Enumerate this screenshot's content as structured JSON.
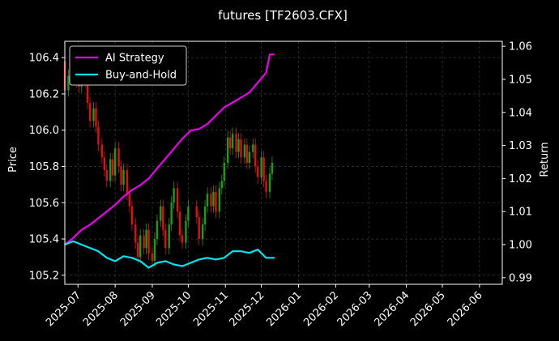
{
  "chart_data": {
    "type": "line",
    "title": "futures [TF2603.CFX]",
    "ylabel_left": "Price",
    "ylabel_right": "Return",
    "xlim": [
      "2025-06-20",
      "2026-06-20"
    ],
    "ylim_left": [
      105.15,
      106.49
    ],
    "ylim_right": [
      0.988,
      1.0615
    ],
    "x_ticks": [
      "2025-07",
      "2025-08",
      "2025-09",
      "2025-10",
      "2025-11",
      "2025-12",
      "2026-01",
      "2026-02",
      "2026-03",
      "2026-04",
      "2026-05",
      "2026-06"
    ],
    "y_ticks_left": [
      "105.2",
      "105.4",
      "105.6",
      "105.8",
      "106.0",
      "106.2",
      "106.4"
    ],
    "y_ticks_right": [
      "0.99",
      "1.00",
      "1.01",
      "1.02",
      "1.03",
      "1.04",
      "1.05",
      "1.06"
    ],
    "grid": true,
    "legend_position": "top-left",
    "colors": {
      "background": "#000000",
      "grid": "#444444",
      "up_candle": "#1a9e1a",
      "down_candle": "#e01010",
      "ai_strategy": "#ee00ee",
      "buy_and_hold": "#00e5ee"
    },
    "series": [
      {
        "name": "AI Strategy",
        "axis": "right",
        "x": [
          "2025-06-20",
          "2025-06-27",
          "2025-07-04",
          "2025-07-11",
          "2025-07-18",
          "2025-07-25",
          "2025-08-01",
          "2025-08-08",
          "2025-08-15",
          "2025-08-22",
          "2025-08-29",
          "2025-09-05",
          "2025-09-12",
          "2025-09-19",
          "2025-09-26",
          "2025-10-03",
          "2025-10-10",
          "2025-10-17",
          "2025-10-24",
          "2025-10-31",
          "2025-11-07",
          "2025-11-14",
          "2025-11-21",
          "2025-11-28",
          "2025-12-05",
          "2025-12-08",
          "2025-12-12"
        ],
        "y": [
          1.0,
          1.002,
          1.0045,
          1.006,
          1.008,
          1.01,
          1.012,
          1.0145,
          1.0165,
          1.018,
          1.02,
          1.023,
          1.026,
          1.029,
          1.032,
          1.0345,
          1.035,
          1.0365,
          1.039,
          1.0415,
          1.043,
          1.0445,
          1.046,
          1.049,
          1.052,
          1.0575,
          1.0575
        ]
      },
      {
        "name": "Buy-and-Hold",
        "axis": "right",
        "x": [
          "2025-06-20",
          "2025-06-27",
          "2025-07-04",
          "2025-07-11",
          "2025-07-18",
          "2025-07-25",
          "2025-08-01",
          "2025-08-08",
          "2025-08-15",
          "2025-08-22",
          "2025-08-29",
          "2025-09-05",
          "2025-09-12",
          "2025-09-19",
          "2025-09-26",
          "2025-10-03",
          "2025-10-10",
          "2025-10-17",
          "2025-10-24",
          "2025-10-31",
          "2025-11-07",
          "2025-11-14",
          "2025-11-21",
          "2025-11-28",
          "2025-12-05",
          "2025-12-12"
        ],
        "y": [
          1.0,
          1.001,
          1.0,
          0.999,
          0.998,
          0.996,
          0.995,
          0.9965,
          0.996,
          0.995,
          0.993,
          0.9945,
          0.995,
          0.994,
          0.9935,
          0.9945,
          0.9955,
          0.996,
          0.9955,
          0.996,
          0.998,
          0.998,
          0.9975,
          0.9985,
          0.996,
          0.996
        ]
      }
    ],
    "candles": [
      {
        "x": "2025-06-20",
        "o": 106.38,
        "c": 106.22
      },
      {
        "x": "2025-06-23",
        "o": 106.22,
        "c": 106.3
      },
      {
        "x": "2025-06-25",
        "o": 106.3,
        "c": 106.36
      },
      {
        "x": "2025-06-27",
        "o": 106.36,
        "c": 106.3
      },
      {
        "x": "2025-06-30",
        "o": 106.3,
        "c": 106.27
      },
      {
        "x": "2025-07-02",
        "o": 106.27,
        "c": 106.24
      },
      {
        "x": "2025-07-04",
        "o": 106.24,
        "c": 106.3
      },
      {
        "x": "2025-07-07",
        "o": 106.3,
        "c": 106.27
      },
      {
        "x": "2025-07-09",
        "o": 106.27,
        "c": 106.15
      },
      {
        "x": "2025-07-11",
        "o": 106.15,
        "c": 106.05
      },
      {
        "x": "2025-07-14",
        "o": 106.05,
        "c": 106.12
      },
      {
        "x": "2025-07-16",
        "o": 106.12,
        "c": 106.02
      },
      {
        "x": "2025-07-18",
        "o": 106.02,
        "c": 105.92
      },
      {
        "x": "2025-07-21",
        "o": 105.92,
        "c": 105.85
      },
      {
        "x": "2025-07-23",
        "o": 105.85,
        "c": 105.78
      },
      {
        "x": "2025-07-25",
        "o": 105.78,
        "c": 105.72
      },
      {
        "x": "2025-07-28",
        "o": 105.72,
        "c": 105.84
      },
      {
        "x": "2025-07-30",
        "o": 105.84,
        "c": 105.75
      },
      {
        "x": "2025-08-01",
        "o": 105.75,
        "c": 105.9
      },
      {
        "x": "2025-08-04",
        "o": 105.9,
        "c": 105.8
      },
      {
        "x": "2025-08-06",
        "o": 105.8,
        "c": 105.7
      },
      {
        "x": "2025-08-08",
        "o": 105.7,
        "c": 105.78
      },
      {
        "x": "2025-08-11",
        "o": 105.78,
        "c": 105.65
      },
      {
        "x": "2025-08-13",
        "o": 105.65,
        "c": 105.58
      },
      {
        "x": "2025-08-15",
        "o": 105.58,
        "c": 105.48
      },
      {
        "x": "2025-08-18",
        "o": 105.48,
        "c": 105.38
      },
      {
        "x": "2025-08-20",
        "o": 105.38,
        "c": 105.3
      },
      {
        "x": "2025-08-22",
        "o": 105.3,
        "c": 105.42
      },
      {
        "x": "2025-08-25",
        "o": 105.42,
        "c": 105.35
      },
      {
        "x": "2025-08-27",
        "o": 105.35,
        "c": 105.45
      },
      {
        "x": "2025-08-29",
        "o": 105.45,
        "c": 105.32
      },
      {
        "x": "2025-09-01",
        "o": 105.32,
        "c": 105.28
      },
      {
        "x": "2025-09-03",
        "o": 105.28,
        "c": 105.4
      },
      {
        "x": "2025-09-05",
        "o": 105.4,
        "c": 105.5
      },
      {
        "x": "2025-09-08",
        "o": 105.5,
        "c": 105.58
      },
      {
        "x": "2025-09-10",
        "o": 105.58,
        "c": 105.45
      },
      {
        "x": "2025-09-12",
        "o": 105.45,
        "c": 105.35
      },
      {
        "x": "2025-09-15",
        "o": 105.35,
        "c": 105.48
      },
      {
        "x": "2025-09-17",
        "o": 105.48,
        "c": 105.6
      },
      {
        "x": "2025-09-19",
        "o": 105.6,
        "c": 105.68
      },
      {
        "x": "2025-09-22",
        "o": 105.68,
        "c": 105.55
      },
      {
        "x": "2025-09-24",
        "o": 105.55,
        "c": 105.42
      },
      {
        "x": "2025-09-26",
        "o": 105.42,
        "c": 105.38
      },
      {
        "x": "2025-09-29",
        "o": 105.38,
        "c": 105.5
      },
      {
        "x": "2025-10-01",
        "o": 105.5,
        "c": 105.58
      },
      {
        "x": "2025-10-08",
        "o": 105.58,
        "c": 105.52
      },
      {
        "x": "2025-10-10",
        "o": 105.52,
        "c": 105.4
      },
      {
        "x": "2025-10-13",
        "o": 105.4,
        "c": 105.48
      },
      {
        "x": "2025-10-15",
        "o": 105.48,
        "c": 105.58
      },
      {
        "x": "2025-10-17",
        "o": 105.58,
        "c": 105.65
      },
      {
        "x": "2025-10-20",
        "o": 105.65,
        "c": 105.58
      },
      {
        "x": "2025-10-22",
        "o": 105.58,
        "c": 105.66
      },
      {
        "x": "2025-10-24",
        "o": 105.66,
        "c": 105.55
      },
      {
        "x": "2025-10-27",
        "o": 105.55,
        "c": 105.68
      },
      {
        "x": "2025-10-29",
        "o": 105.68,
        "c": 105.72
      },
      {
        "x": "2025-10-31",
        "o": 105.72,
        "c": 105.82
      },
      {
        "x": "2025-11-03",
        "o": 105.82,
        "c": 105.96
      },
      {
        "x": "2025-11-05",
        "o": 105.96,
        "c": 105.9
      },
      {
        "x": "2025-11-07",
        "o": 105.9,
        "c": 105.98
      },
      {
        "x": "2025-11-10",
        "o": 105.98,
        "c": 105.88
      },
      {
        "x": "2025-11-12",
        "o": 105.88,
        "c": 105.95
      },
      {
        "x": "2025-11-14",
        "o": 105.95,
        "c": 105.85
      },
      {
        "x": "2025-11-17",
        "o": 105.85,
        "c": 105.92
      },
      {
        "x": "2025-11-19",
        "o": 105.92,
        "c": 105.82
      },
      {
        "x": "2025-11-21",
        "o": 105.82,
        "c": 105.88
      },
      {
        "x": "2025-11-24",
        "o": 105.88,
        "c": 105.92
      },
      {
        "x": "2025-11-26",
        "o": 105.92,
        "c": 105.8
      },
      {
        "x": "2025-11-28",
        "o": 105.8,
        "c": 105.74
      },
      {
        "x": "2025-12-01",
        "o": 105.74,
        "c": 105.85
      },
      {
        "x": "2025-12-03",
        "o": 105.85,
        "c": 105.72
      },
      {
        "x": "2025-12-05",
        "o": 105.72,
        "c": 105.66
      },
      {
        "x": "2025-12-08",
        "o": 105.66,
        "c": 105.76
      },
      {
        "x": "2025-12-10",
        "o": 105.76,
        "c": 105.82
      }
    ]
  }
}
